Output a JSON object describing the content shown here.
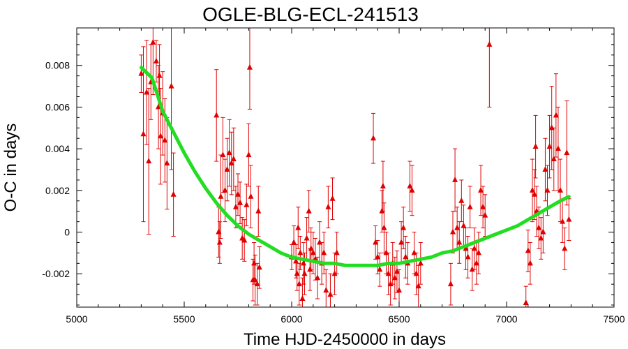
{
  "chart_data": {
    "type": "scatter",
    "title": "OGLE-BLG-ECL-241513",
    "xlabel": "Time HJD-2450000 in days",
    "ylabel": "O-C in days",
    "xlim": [
      5000,
      7500
    ],
    "ylim": [
      -0.0036,
      0.0098
    ],
    "x_ticks": [
      5000,
      5500,
      6000,
      6500,
      7000,
      7500
    ],
    "x_tick_labels": [
      "5000",
      "5500",
      "6000",
      "6500",
      "7000",
      "7500"
    ],
    "y_ticks": [
      -0.002,
      0,
      0.002,
      0.004,
      0.006,
      0.008
    ],
    "y_tick_labels": [
      "-0.002",
      "0",
      "0.002",
      "0.004",
      "0.006",
      "0.008"
    ],
    "grid": false,
    "legend": "none",
    "colors": {
      "points": "#e00000",
      "fit": "#22dd22",
      "axes": "#000000"
    },
    "series": [
      {
        "kind": "points_with_errorbars",
        "points": [
          {
            "x": 5300,
            "y": 0.0076,
            "err": 0.0009
          },
          {
            "x": 5310,
            "y": 0.0047,
            "err": 0.0042
          },
          {
            "x": 5325,
            "y": 0.0067,
            "err": 0.0025
          },
          {
            "x": 5335,
            "y": 0.0034,
            "err": 0.0035
          },
          {
            "x": 5345,
            "y": 0.0072,
            "err": 0.0018
          },
          {
            "x": 5355,
            "y": 0.0091,
            "err": 0.0025
          },
          {
            "x": 5370,
            "y": 0.0082,
            "err": 0.001
          },
          {
            "x": 5380,
            "y": 0.006,
            "err": 0.002
          },
          {
            "x": 5385,
            "y": 0.0075,
            "err": 0.0015
          },
          {
            "x": 5390,
            "y": 0.0046,
            "err": 0.0023
          },
          {
            "x": 5400,
            "y": 0.0057,
            "err": 0.002
          },
          {
            "x": 5410,
            "y": 0.0044,
            "err": 0.002
          },
          {
            "x": 5420,
            "y": 0.0033,
            "err": 0.0022
          },
          {
            "x": 5440,
            "y": 0.007,
            "err": 0.004
          },
          {
            "x": 5450,
            "y": 0.0018,
            "err": 0.002
          },
          {
            "x": 5650,
            "y": 0.0056,
            "err": 0.0022
          },
          {
            "x": 5660,
            "y": 0.0,
            "err": 0.0012
          },
          {
            "x": 5665,
            "y": -0.0005,
            "err": 0.001
          },
          {
            "x": 5670,
            "y": 0.0017,
            "err": 0.002
          },
          {
            "x": 5680,
            "y": 0.0037,
            "err": 0.0018
          },
          {
            "x": 5690,
            "y": 0.002,
            "err": 0.0015
          },
          {
            "x": 5700,
            "y": 0.003,
            "err": 0.0015
          },
          {
            "x": 5710,
            "y": 0.0038,
            "err": 0.0016
          },
          {
            "x": 5720,
            "y": 0.0033,
            "err": 0.0015
          },
          {
            "x": 5730,
            "y": 0.0035,
            "err": 0.0015
          },
          {
            "x": 5740,
            "y": 0.0012,
            "err": 0.001
          },
          {
            "x": 5750,
            "y": 0.0018,
            "err": 0.001
          },
          {
            "x": 5760,
            "y": 0.0014,
            "err": 0.001
          },
          {
            "x": 5770,
            "y": -0.0003,
            "err": 0.001
          },
          {
            "x": 5780,
            "y": -0.0004,
            "err": 0.001
          },
          {
            "x": 5790,
            "y": 0.0013,
            "err": 0.001
          },
          {
            "x": 5800,
            "y": 0.0037,
            "err": 0.0015
          },
          {
            "x": 5805,
            "y": 0.0079,
            "err": 0.002
          },
          {
            "x": 5810,
            "y": 0.0017,
            "err": 0.0015
          },
          {
            "x": 5820,
            "y": -0.0023,
            "err": 0.001
          },
          {
            "x": 5825,
            "y": -0.0015,
            "err": 0.001
          },
          {
            "x": 5830,
            "y": -0.0023,
            "err": 0.0012
          },
          {
            "x": 5840,
            "y": -0.0025,
            "err": 0.001
          },
          {
            "x": 5845,
            "y": 0.001,
            "err": 0.0012
          },
          {
            "x": 5850,
            "y": -0.0017,
            "err": 0.001
          },
          {
            "x": 6000,
            "y": -0.0012,
            "err": 0.0006
          },
          {
            "x": 6010,
            "y": -0.0005,
            "err": 0.0008
          },
          {
            "x": 6020,
            "y": -0.0014,
            "err": 0.0008
          },
          {
            "x": 6025,
            "y": -0.002,
            "err": 0.0008
          },
          {
            "x": 6030,
            "y": 0.0002,
            "err": 0.001
          },
          {
            "x": 6035,
            "y": -0.0025,
            "err": 0.001
          },
          {
            "x": 6040,
            "y": -0.001,
            "err": 0.0008
          },
          {
            "x": 6050,
            "y": -0.0032,
            "err": 0.001
          },
          {
            "x": 6055,
            "y": -0.0015,
            "err": 0.001
          },
          {
            "x": 6060,
            "y": -0.002,
            "err": 0.001
          },
          {
            "x": 6070,
            "y": -0.0003,
            "err": 0.001
          },
          {
            "x": 6080,
            "y": 0.001,
            "err": 0.001
          },
          {
            "x": 6085,
            "y": -0.0018,
            "err": 0.001
          },
          {
            "x": 6090,
            "y": -0.0008,
            "err": 0.001
          },
          {
            "x": 6100,
            "y": -0.001,
            "err": 0.001
          },
          {
            "x": 6110,
            "y": -0.0013,
            "err": 0.001
          },
          {
            "x": 6120,
            "y": -0.0022,
            "err": 0.001
          },
          {
            "x": 6130,
            "y": -0.0005,
            "err": 0.001
          },
          {
            "x": 6140,
            "y": -0.0015,
            "err": 0.001
          },
          {
            "x": 6150,
            "y": -0.001,
            "err": 0.001
          },
          {
            "x": 6160,
            "y": -0.0028,
            "err": 0.001
          },
          {
            "x": 6170,
            "y": 0.0012,
            "err": 0.001
          },
          {
            "x": 6180,
            "y": -0.003,
            "err": 0.001
          },
          {
            "x": 6190,
            "y": 0.0016,
            "err": 0.001
          },
          {
            "x": 6200,
            "y": -0.002,
            "err": 0.001
          },
          {
            "x": 6210,
            "y": -0.001,
            "err": 0.001
          },
          {
            "x": 6380,
            "y": 0.0045,
            "err": 0.0012
          },
          {
            "x": 6390,
            "y": -0.0005,
            "err": 0.0008
          },
          {
            "x": 6400,
            "y": -0.0012,
            "err": 0.0008
          },
          {
            "x": 6410,
            "y": -0.0018,
            "err": 0.0008
          },
          {
            "x": 6420,
            "y": 0.001,
            "err": 0.001
          },
          {
            "x": 6425,
            "y": 0.0022,
            "err": 0.0012
          },
          {
            "x": 6430,
            "y": 0.0002,
            "err": 0.0012
          },
          {
            "x": 6440,
            "y": -0.001,
            "err": 0.001
          },
          {
            "x": 6450,
            "y": -0.002,
            "err": 0.001
          },
          {
            "x": 6460,
            "y": -0.0025,
            "err": 0.001
          },
          {
            "x": 6470,
            "y": -0.0015,
            "err": 0.001
          },
          {
            "x": 6480,
            "y": -0.0022,
            "err": 0.001
          },
          {
            "x": 6490,
            "y": -0.0019,
            "err": 0.001
          },
          {
            "x": 6500,
            "y": -0.0028,
            "err": 0.001
          },
          {
            "x": 6510,
            "y": -0.0005,
            "err": 0.001
          },
          {
            "x": 6520,
            "y": 0.0002,
            "err": 0.001
          },
          {
            "x": 6530,
            "y": -0.0012,
            "err": 0.001
          },
          {
            "x": 6540,
            "y": -0.0015,
            "err": 0.001
          },
          {
            "x": 6550,
            "y": 0.0022,
            "err": 0.0012
          },
          {
            "x": 6560,
            "y": 0.002,
            "err": 0.0012
          },
          {
            "x": 6570,
            "y": -0.001,
            "err": 0.001
          },
          {
            "x": 6580,
            "y": -0.002,
            "err": 0.001
          },
          {
            "x": 6590,
            "y": -0.0026,
            "err": 0.001
          },
          {
            "x": 6600,
            "y": -0.0015,
            "err": 0.001
          },
          {
            "x": 6740,
            "y": -0.0025,
            "err": 0.001
          },
          {
            "x": 6750,
            "y": 0.0,
            "err": 0.001
          },
          {
            "x": 6760,
            "y": 0.0025,
            "err": 0.0015
          },
          {
            "x": 6770,
            "y": 0.0002,
            "err": 0.001
          },
          {
            "x": 6780,
            "y": -0.0005,
            "err": 0.001
          },
          {
            "x": 6790,
            "y": 0.0015,
            "err": 0.001
          },
          {
            "x": 6800,
            "y": 0.0003,
            "err": 0.001
          },
          {
            "x": 6810,
            "y": -0.0008,
            "err": 0.001
          },
          {
            "x": 6820,
            "y": -0.0012,
            "err": 0.001
          },
          {
            "x": 6830,
            "y": 0.0012,
            "err": 0.001
          },
          {
            "x": 6840,
            "y": -0.0018,
            "err": 0.001
          },
          {
            "x": 6850,
            "y": -0.0008,
            "err": 0.001
          },
          {
            "x": 6860,
            "y": -0.0015,
            "err": 0.001
          },
          {
            "x": 6870,
            "y": -0.001,
            "err": 0.001
          },
          {
            "x": 6880,
            "y": 0.002,
            "err": 0.0012
          },
          {
            "x": 6890,
            "y": 0.0012,
            "err": 0.001
          },
          {
            "x": 6900,
            "y": 0.0008,
            "err": 0.001
          },
          {
            "x": 6920,
            "y": 0.009,
            "err": 0.003
          },
          {
            "x": 7090,
            "y": -0.0034,
            "err": 0.0008
          },
          {
            "x": 7100,
            "y": -0.0009,
            "err": 0.001
          },
          {
            "x": 7110,
            "y": -0.0015,
            "err": 0.001
          },
          {
            "x": 7120,
            "y": 0.002,
            "err": 0.0015
          },
          {
            "x": 7130,
            "y": 0.0018,
            "err": 0.0012
          },
          {
            "x": 7135,
            "y": 0.0041,
            "err": 0.0015
          },
          {
            "x": 7140,
            "y": 0.001,
            "err": 0.0012
          },
          {
            "x": 7150,
            "y": 0.0002,
            "err": 0.001
          },
          {
            "x": 7160,
            "y": -0.0003,
            "err": 0.001
          },
          {
            "x": 7170,
            "y": 0.0,
            "err": 0.001
          },
          {
            "x": 7180,
            "y": 0.003,
            "err": 0.0015
          },
          {
            "x": 7190,
            "y": 0.002,
            "err": 0.0012
          },
          {
            "x": 7200,
            "y": 0.0041,
            "err": 0.0015
          },
          {
            "x": 7210,
            "y": 0.005,
            "err": 0.002
          },
          {
            "x": 7220,
            "y": 0.0035,
            "err": 0.0015
          },
          {
            "x": 7230,
            "y": 0.0056,
            "err": 0.002
          },
          {
            "x": 7240,
            "y": 0.004,
            "err": 0.002
          },
          {
            "x": 7250,
            "y": 0.002,
            "err": 0.0015
          },
          {
            "x": 7260,
            "y": 0.0005,
            "err": 0.001
          },
          {
            "x": 7270,
            "y": -0.0008,
            "err": 0.001
          },
          {
            "x": 7280,
            "y": 0.0038,
            "err": 0.0025
          },
          {
            "x": 7290,
            "y": 0.0006,
            "err": 0.001
          }
        ]
      },
      {
        "kind": "fit_curve",
        "x": [
          5300,
          5350,
          5400,
          5450,
          5500,
          5550,
          5600,
          5650,
          5700,
          5750,
          5800,
          5850,
          5900,
          5950,
          6000,
          6050,
          6100,
          6150,
          6200,
          6250,
          6300,
          6350,
          6400,
          6450,
          6500,
          6550,
          6600,
          6650,
          6700,
          6750,
          6800,
          6850,
          6900,
          6950,
          7000,
          7050,
          7100,
          7150,
          7200,
          7250,
          7290
        ],
        "y": [
          0.0079,
          0.0074,
          0.0058,
          0.0048,
          0.0038,
          0.0029,
          0.0021,
          0.0014,
          0.0008,
          0.0003,
          -0.0001,
          -0.0004,
          -0.0007,
          -0.001,
          -0.0012,
          -0.0013,
          -0.0014,
          -0.0015,
          -0.0015,
          -0.0016,
          -0.0016,
          -0.0016,
          -0.0016,
          -0.0015,
          -0.0015,
          -0.0014,
          -0.0013,
          -0.0012,
          -0.001,
          -0.0009,
          -0.0007,
          -0.0005,
          -0.0003,
          -0.0001,
          0.0001,
          0.0003,
          0.0006,
          0.0009,
          0.0012,
          0.0015,
          0.0017
        ]
      }
    ]
  }
}
